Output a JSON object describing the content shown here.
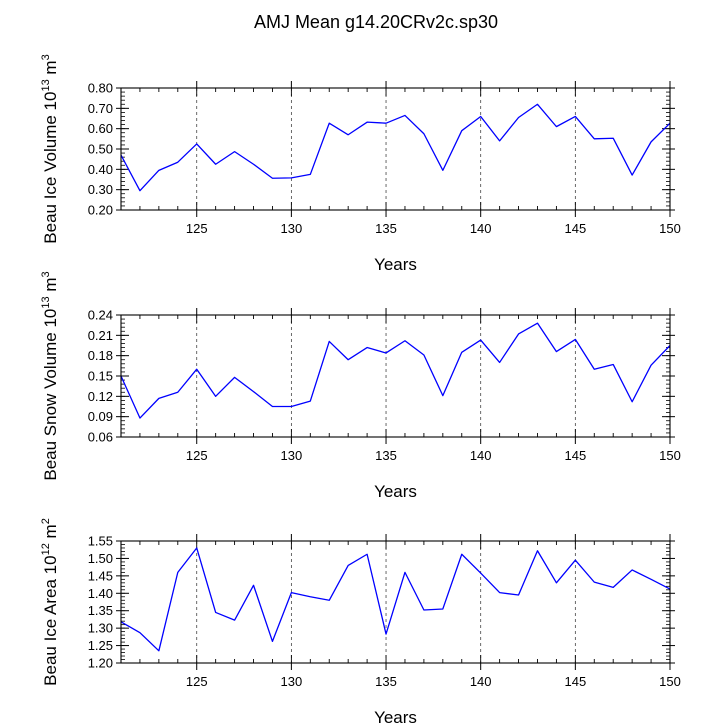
{
  "title": "AMJ Mean g14.20CRv2c.sp30",
  "line_color": "#0000ff",
  "chart_data": [
    {
      "type": "line",
      "xlabel": "Years",
      "ylabel_main": "Beau Ice Volume 10",
      "ylabel_exp1": "13",
      "ylabel_unit": " m",
      "ylabel_exp2": "3",
      "xlim": [
        121,
        150
      ],
      "ylim": [
        0.2,
        0.8
      ],
      "xticks": [
        125,
        130,
        135,
        140,
        145,
        150
      ],
      "yticks": [
        0.2,
        0.3,
        0.4,
        0.5,
        0.6,
        0.7,
        0.8
      ],
      "ytick_decimals": 2,
      "yminor_step": 0.02,
      "grid": "vertical-dashed-at-major-x-ticks",
      "x": [
        121,
        122,
        123,
        124,
        125,
        126,
        127,
        128,
        129,
        130,
        131,
        132,
        133,
        134,
        135,
        136,
        137,
        138,
        139,
        140,
        141,
        142,
        143,
        144,
        145,
        146,
        147,
        148,
        149,
        150
      ],
      "values": [
        0.47,
        0.295,
        0.395,
        0.435,
        0.525,
        0.425,
        0.487,
        0.425,
        0.356,
        0.358,
        0.375,
        0.627,
        0.57,
        0.632,
        0.627,
        0.665,
        0.575,
        0.395,
        0.59,
        0.66,
        0.54,
        0.655,
        0.72,
        0.61,
        0.66,
        0.55,
        0.553,
        0.372,
        0.535,
        0.627
      ]
    },
    {
      "type": "line",
      "xlabel": "Years",
      "ylabel_main": "Beau Snow Volume 10",
      "ylabel_exp1": "13",
      "ylabel_unit": " m",
      "ylabel_exp2": "3",
      "xlim": [
        121,
        150
      ],
      "ylim": [
        0.06,
        0.24
      ],
      "xticks": [
        125,
        130,
        135,
        140,
        145,
        150
      ],
      "yticks": [
        0.06,
        0.09,
        0.12,
        0.15,
        0.18,
        0.21,
        0.24
      ],
      "ytick_decimals": 2,
      "yminor_step": 0.006,
      "grid": "vertical-dashed-at-major-x-ticks",
      "x": [
        121,
        122,
        123,
        124,
        125,
        126,
        127,
        128,
        129,
        130,
        131,
        132,
        133,
        134,
        135,
        136,
        137,
        138,
        139,
        140,
        141,
        142,
        143,
        144,
        145,
        146,
        147,
        148,
        149,
        150
      ],
      "values": [
        0.15,
        0.088,
        0.117,
        0.126,
        0.16,
        0.12,
        0.148,
        0.127,
        0.105,
        0.105,
        0.113,
        0.201,
        0.174,
        0.192,
        0.184,
        0.202,
        0.181,
        0.121,
        0.185,
        0.203,
        0.17,
        0.212,
        0.228,
        0.186,
        0.204,
        0.16,
        0.167,
        0.112,
        0.166,
        0.195
      ]
    },
    {
      "type": "line",
      "xlabel": "Years",
      "ylabel_main": "Beau Ice Area 10",
      "ylabel_exp1": "12",
      "ylabel_unit": " m",
      "ylabel_exp2": "2",
      "xlim": [
        121,
        150
      ],
      "ylim": [
        1.2,
        1.55
      ],
      "xticks": [
        125,
        130,
        135,
        140,
        145,
        150
      ],
      "yticks": [
        1.2,
        1.25,
        1.3,
        1.35,
        1.4,
        1.45,
        1.5,
        1.55
      ],
      "ytick_decimals": 2,
      "yminor_step": 0.01,
      "grid": "vertical-dashed-at-major-x-ticks",
      "x": [
        121,
        122,
        123,
        124,
        125,
        126,
        127,
        128,
        129,
        130,
        131,
        132,
        133,
        134,
        135,
        136,
        137,
        138,
        139,
        140,
        141,
        142,
        143,
        144,
        145,
        146,
        147,
        148,
        149,
        150
      ],
      "values": [
        1.318,
        1.287,
        1.235,
        1.46,
        1.53,
        1.345,
        1.323,
        1.423,
        1.262,
        1.402,
        1.39,
        1.38,
        1.48,
        1.512,
        1.283,
        1.46,
        1.352,
        1.355,
        1.512,
        1.458,
        1.402,
        1.395,
        1.522,
        1.43,
        1.495,
        1.432,
        1.417,
        1.467,
        1.44,
        1.412
      ]
    }
  ]
}
